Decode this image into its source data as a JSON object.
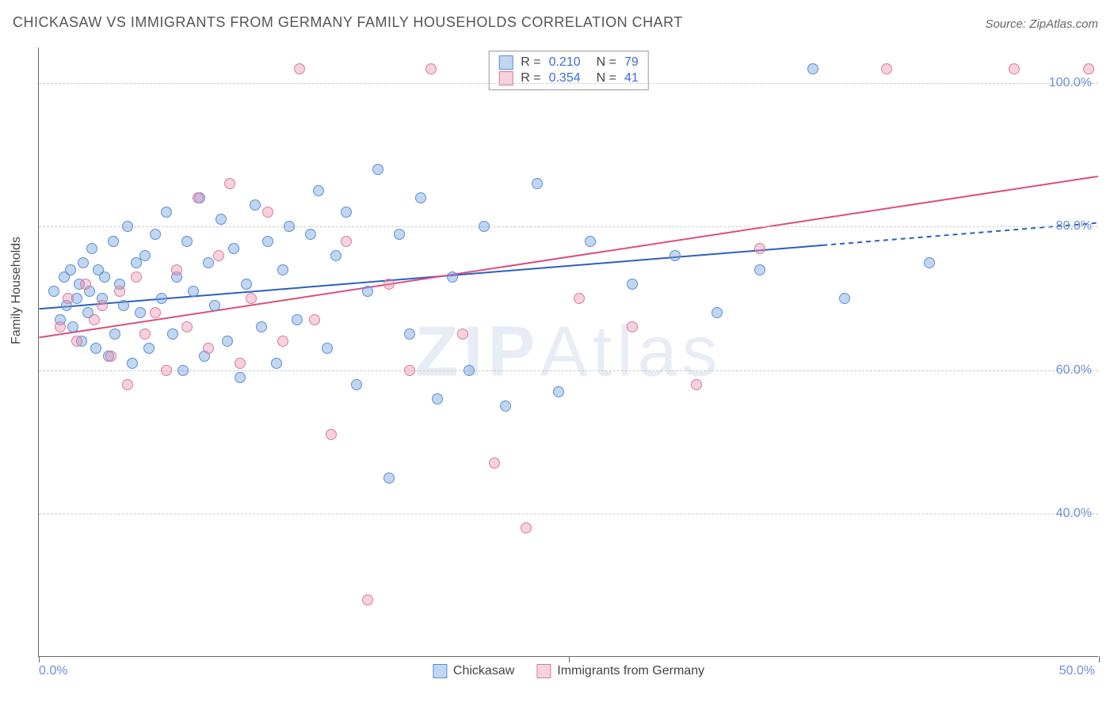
{
  "title": "CHICKASAW VS IMMIGRANTS FROM GERMANY FAMILY HOUSEHOLDS CORRELATION CHART",
  "source_label": "Source: ZipAtlas.com",
  "y_axis_label": "Family Households",
  "watermark": "ZIPAtlas",
  "chart": {
    "type": "scatter",
    "background_color": "#ffffff",
    "grid_color": "#cccccc",
    "axis_color": "#666666",
    "tick_label_color": "#6b8fd4",
    "tick_fontsize": 16,
    "title_fontsize": 18,
    "title_color": "#555555",
    "xlim": [
      0,
      50
    ],
    "ylim": [
      20,
      105
    ],
    "x_ticks": [
      0,
      25,
      50
    ],
    "x_tick_labels": [
      "0.0%",
      "",
      "50.0%"
    ],
    "y_ticks": [
      40,
      60,
      80,
      100
    ],
    "y_tick_labels": [
      "40.0%",
      "60.0%",
      "80.0%",
      "100.0%"
    ],
    "point_radius": 7,
    "point_border_width": 1.2,
    "series": [
      {
        "name": "Chickasaw",
        "fill_color": "rgba(120,165,225,0.45)",
        "stroke_color": "#5a8fd6",
        "trend_color": "#2b5fc0",
        "trend_width": 2,
        "trend_solid_to_x": 37,
        "R": "0.210",
        "N": "79",
        "trend": {
          "x1": 0,
          "y1": 68.5,
          "x2": 50,
          "y2": 80.5
        },
        "points": [
          [
            0.7,
            71
          ],
          [
            1.0,
            67
          ],
          [
            1.2,
            73
          ],
          [
            1.3,
            69
          ],
          [
            1.5,
            74
          ],
          [
            1.6,
            66
          ],
          [
            1.8,
            70
          ],
          [
            1.9,
            72
          ],
          [
            2.0,
            64
          ],
          [
            2.1,
            75
          ],
          [
            2.3,
            68
          ],
          [
            2.4,
            71
          ],
          [
            2.5,
            77
          ],
          [
            2.7,
            63
          ],
          [
            2.8,
            74
          ],
          [
            3.0,
            70
          ],
          [
            3.1,
            73
          ],
          [
            3.3,
            62
          ],
          [
            3.5,
            78
          ],
          [
            3.6,
            65
          ],
          [
            3.8,
            72
          ],
          [
            4.0,
            69
          ],
          [
            4.2,
            80
          ],
          [
            4.4,
            61
          ],
          [
            4.6,
            75
          ],
          [
            4.8,
            68
          ],
          [
            5.0,
            76
          ],
          [
            5.2,
            63
          ],
          [
            5.5,
            79
          ],
          [
            5.8,
            70
          ],
          [
            6.0,
            82
          ],
          [
            6.3,
            65
          ],
          [
            6.5,
            73
          ],
          [
            6.8,
            60
          ],
          [
            7.0,
            78
          ],
          [
            7.3,
            71
          ],
          [
            7.6,
            84
          ],
          [
            7.8,
            62
          ],
          [
            8.0,
            75
          ],
          [
            8.3,
            69
          ],
          [
            8.6,
            81
          ],
          [
            8.9,
            64
          ],
          [
            9.2,
            77
          ],
          [
            9.5,
            59
          ],
          [
            9.8,
            72
          ],
          [
            10.2,
            83
          ],
          [
            10.5,
            66
          ],
          [
            10.8,
            78
          ],
          [
            11.2,
            61
          ],
          [
            11.5,
            74
          ],
          [
            11.8,
            80
          ],
          [
            12.2,
            67
          ],
          [
            12.8,
            79
          ],
          [
            13.2,
            85
          ],
          [
            13.6,
            63
          ],
          [
            14.0,
            76
          ],
          [
            14.5,
            82
          ],
          [
            15.0,
            58
          ],
          [
            15.5,
            71
          ],
          [
            16.0,
            88
          ],
          [
            16.5,
            45
          ],
          [
            17.0,
            79
          ],
          [
            17.5,
            65
          ],
          [
            18.0,
            84
          ],
          [
            18.8,
            56
          ],
          [
            19.5,
            73
          ],
          [
            20.3,
            60
          ],
          [
            21.0,
            80
          ],
          [
            22.0,
            55
          ],
          [
            23.5,
            86
          ],
          [
            24.5,
            57
          ],
          [
            26.0,
            78
          ],
          [
            28.0,
            72
          ],
          [
            30.0,
            76
          ],
          [
            32.0,
            68
          ],
          [
            34.0,
            74
          ],
          [
            36.5,
            102
          ],
          [
            38.0,
            70
          ],
          [
            42.0,
            75
          ]
        ]
      },
      {
        "name": "Immigrants from Germany",
        "fill_color": "rgba(235,140,170,0.40)",
        "stroke_color": "#d77ca0",
        "trend_color": "#d94f7a",
        "trend_width": 2,
        "trend_solid_to_x": 50,
        "R": "0.354",
        "N": "41",
        "trend": {
          "x1": 0,
          "y1": 64.5,
          "x2": 50,
          "y2": 87.0
        },
        "points": [
          [
            1.0,
            66
          ],
          [
            1.4,
            70
          ],
          [
            1.8,
            64
          ],
          [
            2.2,
            72
          ],
          [
            2.6,
            67
          ],
          [
            3.0,
            69
          ],
          [
            3.4,
            62
          ],
          [
            3.8,
            71
          ],
          [
            4.2,
            58
          ],
          [
            4.6,
            73
          ],
          [
            5.0,
            65
          ],
          [
            5.5,
            68
          ],
          [
            6.0,
            60
          ],
          [
            6.5,
            74
          ],
          [
            7.0,
            66
          ],
          [
            7.5,
            84
          ],
          [
            8.0,
            63
          ],
          [
            8.5,
            76
          ],
          [
            9.0,
            86
          ],
          [
            9.5,
            61
          ],
          [
            10.0,
            70
          ],
          [
            10.8,
            82
          ],
          [
            11.5,
            64
          ],
          [
            12.3,
            102
          ],
          [
            13.0,
            67
          ],
          [
            13.8,
            51
          ],
          [
            14.5,
            78
          ],
          [
            15.5,
            28
          ],
          [
            16.5,
            72
          ],
          [
            17.5,
            60
          ],
          [
            18.5,
            102
          ],
          [
            20.0,
            65
          ],
          [
            21.5,
            47
          ],
          [
            23.0,
            38
          ],
          [
            25.5,
            70
          ],
          [
            28.0,
            66
          ],
          [
            31.0,
            58
          ],
          [
            34.0,
            77
          ],
          [
            40.0,
            102
          ],
          [
            46.0,
            102
          ],
          [
            49.5,
            102
          ]
        ]
      }
    ]
  },
  "stat_box": {
    "border_color": "#999999",
    "label_color": "#444444",
    "value_color": "#3b6fd8"
  },
  "legend": {
    "items": [
      {
        "label": "Chickasaw",
        "fill": "rgba(120,165,225,0.45)",
        "stroke": "#5a8fd6"
      },
      {
        "label": "Immigrants from Germany",
        "fill": "rgba(235,140,170,0.40)",
        "stroke": "#d77ca0"
      }
    ]
  }
}
